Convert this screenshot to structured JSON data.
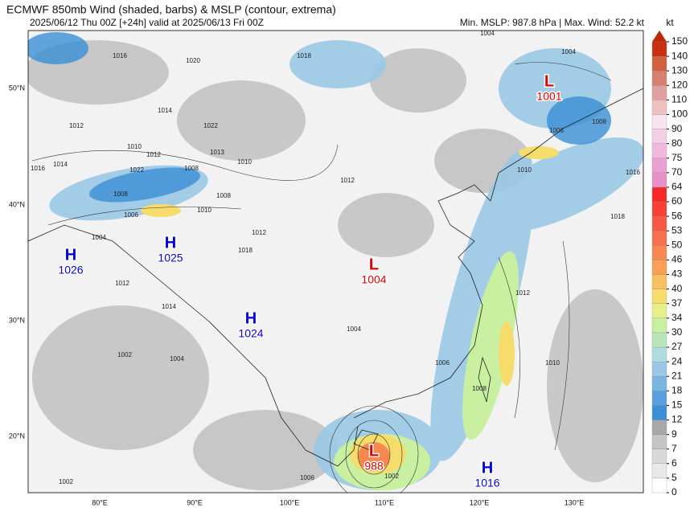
{
  "header": {
    "title": "ECMWF 850mb Wind (shaded, barbs) & MSLP (contour, extrema)",
    "subtitle": "2025/06/12 Thu 00Z [+24h] valid at 2025/06/13 Fri 00Z",
    "stats": "Min. MSLP: 987.8 hPa | Max. Wind: 52.2 kt"
  },
  "colorbar": {
    "unit": "kt",
    "levels": [
      0,
      5,
      6,
      7,
      9,
      12,
      15,
      18,
      21,
      24,
      27,
      30,
      34,
      37,
      40,
      43,
      46,
      50,
      53,
      56,
      60,
      64,
      70,
      75,
      80,
      90,
      100,
      110,
      120,
      130,
      140,
      150
    ],
    "colors": [
      "#ffffff",
      "#e8e8e8",
      "#d8d8d8",
      "#c4c4c4",
      "#a8a8a8",
      "#3a8fd8",
      "#5aa0dc",
      "#7ab4e0",
      "#9ac8e6",
      "#b0dce0",
      "#b8e6b8",
      "#c8f0a0",
      "#e6f08a",
      "#f6dc6a",
      "#f8c060",
      "#f8a058",
      "#f88850",
      "#f87050",
      "#f85848",
      "#f84038",
      "#f82828",
      "#e890c8",
      "#eaa0d0",
      "#f0b8dc",
      "#f4d0e8",
      "#f8e4f0",
      "#f0c0c0",
      "#e0a0a0",
      "#d88070",
      "#d06040",
      "#c83010"
    ],
    "extend_color": "#c02800"
  },
  "axes": {
    "lat_labels": [
      "50°N",
      "40°N",
      "30°N",
      "20°N"
    ],
    "lon_labels": [
      "80°E",
      "90°E",
      "100°E",
      "110°E",
      "120°E",
      "130°E"
    ]
  },
  "centers": [
    {
      "kind": "L",
      "value": "1001"
    },
    {
      "kind": "L",
      "value": "1004"
    },
    {
      "kind": "L",
      "value": "988"
    },
    {
      "kind": "H",
      "value": "1026"
    },
    {
      "kind": "H",
      "value": "1025"
    },
    {
      "kind": "H",
      "value": "1024"
    },
    {
      "kind": "H",
      "value": "1016"
    }
  ],
  "contour_labels": [
    "1016",
    "1020",
    "1018",
    "1004",
    "1004",
    "1014",
    "1012",
    "1022",
    "1010",
    "1012",
    "1014",
    "1016",
    "1022",
    "1008",
    "1010",
    "1013",
    "1008",
    "1006",
    "1008",
    "1010",
    "1012",
    "1018",
    "1004",
    "1012",
    "1014",
    "1012",
    "1006",
    "1008",
    "1010",
    "1016",
    "1018",
    "1012",
    "1010",
    "1002",
    "1004",
    "1006",
    "1004",
    "1008",
    "1002",
    "1006",
    "1002"
  ]
}
